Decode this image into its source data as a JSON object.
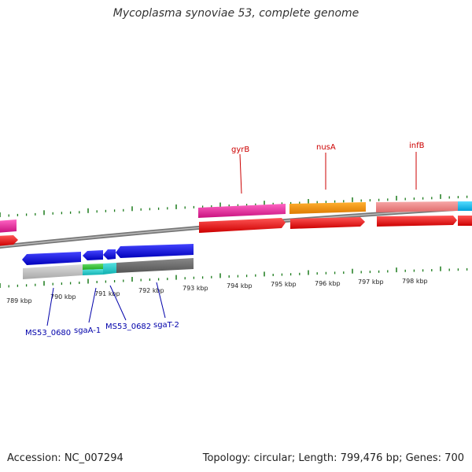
{
  "title": "Mycoplasma synoviae 53, complete genome",
  "footer": {
    "accession": "Accession: NC_007294",
    "summary": "Topology: circular; Length: 799,476 bp; Genes: 700"
  },
  "colors": {
    "tick": "#1a7a1a",
    "backbone": "#888888",
    "top_label": "#cc0000",
    "bottom_label": "#0000aa"
  },
  "scale_labels": [
    "789 kbp",
    "790 kbp",
    "791 kbp",
    "792 kbp",
    "793 kbp",
    "794 kbp",
    "795 kbp",
    "796 kbp",
    "797 kbp",
    "798 kbp"
  ],
  "top_gene_labels": [
    "gyrB",
    "nusA",
    "infB"
  ],
  "bottom_gene_labels": [
    "MS53_0680",
    "sgaA-1",
    "MS53_0682",
    "sgaT-2"
  ]
}
